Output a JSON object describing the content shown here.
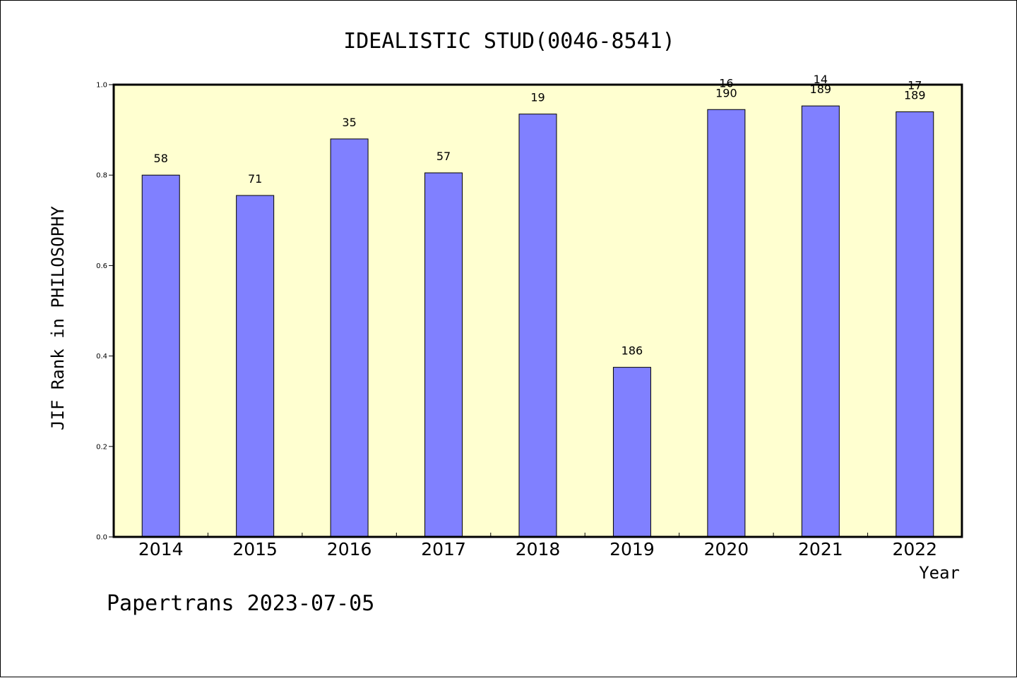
{
  "chart_data": {
    "type": "bar",
    "title": "IDEALISTIC STUD(0046-8541)",
    "xlabel": "Year",
    "ylabel": "JIF Rank in PHILOSOPHY",
    "ylim": [
      0,
      1.0
    ],
    "yticks": [
      "0.0",
      "0.2",
      "0.4",
      "0.6",
      "0.8",
      "1.0"
    ],
    "categories": [
      "2014",
      "2015",
      "2016",
      "2017",
      "2018",
      "2019",
      "2020",
      "2021",
      "2022"
    ],
    "values": [
      0.8,
      0.755,
      0.88,
      0.805,
      0.935,
      0.375,
      0.945,
      0.953,
      0.94
    ],
    "labels": [
      [
        "58"
      ],
      [
        "71"
      ],
      [
        "35"
      ],
      [
        "57"
      ],
      [
        "19"
      ],
      [
        "186"
      ],
      [
        "16",
        "190"
      ],
      [
        "14",
        "189"
      ],
      [
        "17",
        "189"
      ]
    ],
    "grid": false,
    "colors": {
      "bar": "#8080ff",
      "plot_background": "#ffffd0",
      "page_background": "#ffffff"
    }
  },
  "footer": "Papertrans 2023-07-05"
}
